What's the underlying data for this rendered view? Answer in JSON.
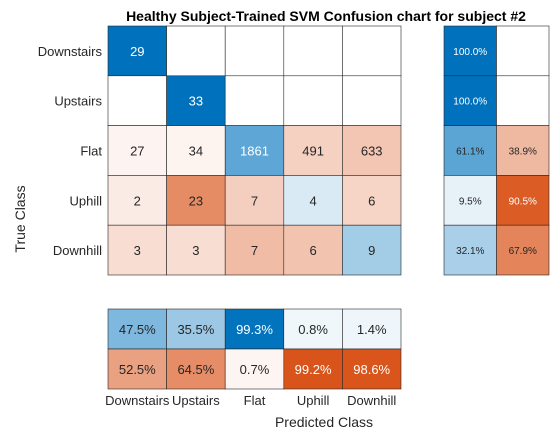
{
  "chart_data": {
    "type": "heatmap",
    "title": "Healthy Subject-Trained SVM Confusion chart for subject #2",
    "xlabel": "Predicted Class",
    "ylabel": "True Class",
    "classes": [
      "Downstairs",
      "Upstairs",
      "Flat",
      "Uphill",
      "Downhill"
    ],
    "matrix": [
      [
        29,
        null,
        null,
        null,
        null
      ],
      [
        null,
        33,
        null,
        null,
        null
      ],
      [
        27,
        34,
        1861,
        491,
        633
      ],
      [
        2,
        23,
        7,
        4,
        6
      ],
      [
        3,
        3,
        7,
        6,
        9
      ]
    ],
    "row_summary": {
      "correct": [
        "100.0%",
        "100.0%",
        "61.1%",
        "9.5%",
        "32.1%"
      ],
      "incorrect": [
        "",
        "",
        "38.9%",
        "90.5%",
        "67.9%"
      ],
      "correct_values": [
        100.0,
        100.0,
        61.1,
        9.5,
        32.1
      ],
      "incorrect_values": [
        0,
        0,
        38.9,
        90.5,
        67.9
      ]
    },
    "column_summary": {
      "correct": [
        "47.5%",
        "35.5%",
        "99.3%",
        "0.8%",
        "1.4%"
      ],
      "incorrect": [
        "52.5%",
        "64.5%",
        "0.7%",
        "99.2%",
        "98.6%"
      ],
      "correct_values": [
        47.5,
        35.5,
        99.3,
        0.8,
        1.4
      ],
      "incorrect_values": [
        52.5,
        64.5,
        0.7,
        99.2,
        98.6
      ]
    },
    "colors": {
      "correct": "#0072bd",
      "incorrect": "#d95319",
      "grid": "#262626"
    }
  }
}
